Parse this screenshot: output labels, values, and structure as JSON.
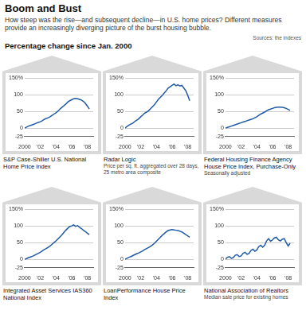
{
  "header": {
    "title": "Boom and Bust",
    "subtitle": "How steep was the rise—and subsequent decline—in U.S. home prices? Different measures provide an increasingly diverging picture of the burst housing bubble.",
    "axis_note": "Percentage change since Jan. 2000",
    "source": "Sources: the indexes"
  },
  "chart_data": [
    {
      "type": "line",
      "title": "S&P Case-Shiller U.S. National Home Price Index",
      "color": "#1f5aa6",
      "grid": true,
      "x": [
        2000,
        2000.25,
        2000.5,
        2000.75,
        2001,
        2001.25,
        2001.5,
        2001.75,
        2002,
        2002.25,
        2002.5,
        2002.75,
        2003,
        2003.25,
        2003.5,
        2003.75,
        2004,
        2004.25,
        2004.5,
        2004.75,
        2005,
        2005.25,
        2005.5,
        2005.75,
        2006,
        2006.25,
        2006.5,
        2006.75,
        2007,
        2007.25,
        2007.5,
        2007.75,
        2008,
        2008.25
      ],
      "values": [
        0,
        3,
        6,
        8,
        10,
        12,
        15,
        17,
        19,
        22,
        26,
        29,
        31,
        34,
        38,
        42,
        46,
        51,
        57,
        62,
        67,
        72,
        78,
        82,
        85,
        88,
        89,
        88,
        86,
        84,
        80,
        74,
        66,
        57
      ],
      "xlim": [
        2000,
        2008.75
      ],
      "xticks": [
        2000,
        {
          "value": 2002,
          "label": "'02"
        },
        {
          "value": 2004,
          "label": "'04"
        },
        {
          "value": 2006,
          "label": "'06"
        },
        {
          "value": 2008,
          "label": "'08"
        }
      ],
      "ylim": [
        -25,
        150
      ],
      "yticks": [
        -25,
        0,
        50,
        100,
        {
          "value": 150,
          "label": "150%"
        }
      ]
    },
    {
      "type": "line",
      "title": "Radar Logic",
      "subtitle": "Price per sq. ft. aggregated over 28 days, 25 metro area composite",
      "color": "#1f5aa6",
      "grid": true,
      "x": [
        2000,
        2000.25,
        2000.5,
        2000.75,
        2001,
        2001.25,
        2001.5,
        2001.75,
        2002,
        2002.25,
        2002.5,
        2002.75,
        2003,
        2003.25,
        2003.5,
        2003.75,
        2004,
        2004.25,
        2004.5,
        2004.75,
        2005,
        2005.25,
        2005.5,
        2005.75,
        2006,
        2006.25,
        2006.5,
        2006.75,
        2007,
        2007.25,
        2007.5,
        2007.75,
        2008,
        2008.25
      ],
      "values": [
        0,
        5,
        9,
        12,
        15,
        20,
        24,
        28,
        34,
        39,
        45,
        48,
        52,
        58,
        64,
        70,
        78,
        86,
        92,
        98,
        105,
        112,
        120,
        124,
        128,
        132,
        127,
        130,
        126,
        128,
        120,
        112,
        98,
        82
      ],
      "xlim": [
        2000,
        2008.75
      ],
      "xticks": [
        2000,
        {
          "value": 2002,
          "label": "'02"
        },
        {
          "value": 2004,
          "label": "'04"
        },
        {
          "value": 2006,
          "label": "'06"
        },
        {
          "value": 2008,
          "label": "'08"
        }
      ],
      "ylim": [
        -25,
        150
      ],
      "yticks": [
        -25,
        0,
        50,
        100,
        {
          "value": 150,
          "label": "150%"
        }
      ]
    },
    {
      "type": "line",
      "title": "Federal Housing Finance Agency House Price Index, Purchase-Only",
      "subtitle": "Seasonally adjusted",
      "color": "#1f5aa6",
      "grid": true,
      "x": [
        2000,
        2000.25,
        2000.5,
        2000.75,
        2001,
        2001.25,
        2001.5,
        2001.75,
        2002,
        2002.25,
        2002.5,
        2002.75,
        2003,
        2003.25,
        2003.5,
        2003.75,
        2004,
        2004.25,
        2004.5,
        2004.75,
        2005,
        2005.25,
        2005.5,
        2005.75,
        2006,
        2006.25,
        2006.5,
        2006.75,
        2007,
        2007.25,
        2007.5,
        2007.75,
        2008,
        2008.25
      ],
      "values": [
        0,
        2,
        4,
        6,
        8,
        10,
        12,
        14,
        16,
        18,
        20,
        22,
        24,
        26,
        28,
        31,
        34,
        38,
        42,
        45,
        48,
        52,
        55,
        57,
        59,
        61,
        62,
        63,
        63,
        62,
        61,
        59,
        56,
        53
      ],
      "xlim": [
        2000,
        2008.75
      ],
      "xticks": [
        2000,
        {
          "value": 2002,
          "label": "'02"
        },
        {
          "value": 2004,
          "label": "'04"
        },
        {
          "value": 2006,
          "label": "'06"
        },
        {
          "value": 2008,
          "label": "'08"
        }
      ],
      "ylim": [
        -25,
        150
      ],
      "yticks": [
        -25,
        0,
        50,
        100,
        {
          "value": 150,
          "label": "150%"
        }
      ]
    },
    {
      "type": "line",
      "title": "Integrated Asset Services IAS360 National Index",
      "color": "#1f5aa6",
      "grid": true,
      "x": [
        2000,
        2000.25,
        2000.5,
        2000.75,
        2001,
        2001.25,
        2001.5,
        2001.75,
        2002,
        2002.25,
        2002.5,
        2002.75,
        2003,
        2003.25,
        2003.5,
        2003.75,
        2004,
        2004.25,
        2004.5,
        2004.75,
        2005,
        2005.25,
        2005.5,
        2005.75,
        2006,
        2006.25,
        2006.5,
        2006.75,
        2007,
        2007.25,
        2007.5,
        2007.75,
        2008,
        2008.25
      ],
      "values": [
        0,
        2,
        5,
        7,
        9,
        12,
        15,
        18,
        21,
        25,
        29,
        32,
        36,
        40,
        45,
        50,
        55,
        61,
        67,
        73,
        80,
        87,
        93,
        98,
        100,
        103,
        99,
        101,
        96,
        92,
        87,
        83,
        78,
        74
      ],
      "xlim": [
        2000,
        2008.75
      ],
      "xticks": [
        2000,
        {
          "value": 2002,
          "label": "'02"
        },
        {
          "value": 2004,
          "label": "'04"
        },
        {
          "value": 2006,
          "label": "'06"
        },
        {
          "value": 2008,
          "label": "'08"
        }
      ],
      "ylim": [
        -25,
        150
      ],
      "yticks": [
        -25,
        0,
        50,
        100,
        {
          "value": 150,
          "label": "150%"
        }
      ]
    },
    {
      "type": "line",
      "title": "LoanPerformance House Price Index",
      "color": "#1f5aa6",
      "grid": true,
      "x": [
        2000,
        2000.25,
        2000.5,
        2000.75,
        2001,
        2001.25,
        2001.5,
        2001.75,
        2002,
        2002.25,
        2002.5,
        2002.75,
        2003,
        2003.25,
        2003.5,
        2003.75,
        2004,
        2004.25,
        2004.5,
        2004.75,
        2005,
        2005.25,
        2005.5,
        2005.75,
        2006,
        2006.25,
        2006.5,
        2006.75,
        2007,
        2007.25,
        2007.5,
        2007.75,
        2008,
        2008.25
      ],
      "values": [
        0,
        3,
        6,
        8,
        11,
        14,
        17,
        19,
        22,
        25,
        29,
        32,
        35,
        39,
        43,
        48,
        54,
        60,
        66,
        72,
        77,
        82,
        86,
        88,
        89,
        88,
        87,
        86,
        84,
        82,
        78,
        74,
        70,
        66
      ],
      "xlim": [
        2000,
        2008.75
      ],
      "xticks": [
        2000,
        {
          "value": 2002,
          "label": "'02"
        },
        {
          "value": 2004,
          "label": "'04"
        },
        {
          "value": 2006,
          "label": "'06"
        },
        {
          "value": 2008,
          "label": "'08"
        }
      ],
      "ylim": [
        -25,
        150
      ],
      "yticks": [
        -25,
        0,
        50,
        100,
        {
          "value": 150,
          "label": "150%"
        }
      ]
    },
    {
      "type": "line",
      "title": "National Association of Realtors",
      "subtitle": "Median sale price for existing homes",
      "color": "#1f5aa6",
      "grid": true,
      "x": [
        2000,
        2000.25,
        2000.5,
        2000.75,
        2001,
        2001.25,
        2001.5,
        2001.75,
        2002,
        2002.25,
        2002.5,
        2002.75,
        2003,
        2003.25,
        2003.5,
        2003.75,
        2004,
        2004.25,
        2004.5,
        2004.75,
        2005,
        2005.25,
        2005.5,
        2005.75,
        2006,
        2006.25,
        2006.5,
        2006.75,
        2007,
        2007.25,
        2007.5,
        2007.75,
        2008,
        2008.25
      ],
      "values": [
        0,
        6,
        8,
        3,
        5,
        12,
        14,
        8,
        10,
        18,
        21,
        15,
        17,
        26,
        30,
        24,
        28,
        38,
        42,
        36,
        42,
        55,
        62,
        54,
        58,
        64,
        66,
        58,
        55,
        60,
        62,
        50,
        40,
        48
      ],
      "xlim": [
        2000,
        2008.75
      ],
      "xticks": [
        2000,
        {
          "value": 2002,
          "label": "'02"
        },
        {
          "value": 2004,
          "label": "'04"
        },
        {
          "value": 2006,
          "label": "'06"
        },
        {
          "value": 2008,
          "label": "'08"
        }
      ],
      "ylim": [
        -25,
        150
      ],
      "yticks": [
        -25,
        0,
        50,
        100,
        {
          "value": 150,
          "label": "150%"
        }
      ]
    }
  ]
}
